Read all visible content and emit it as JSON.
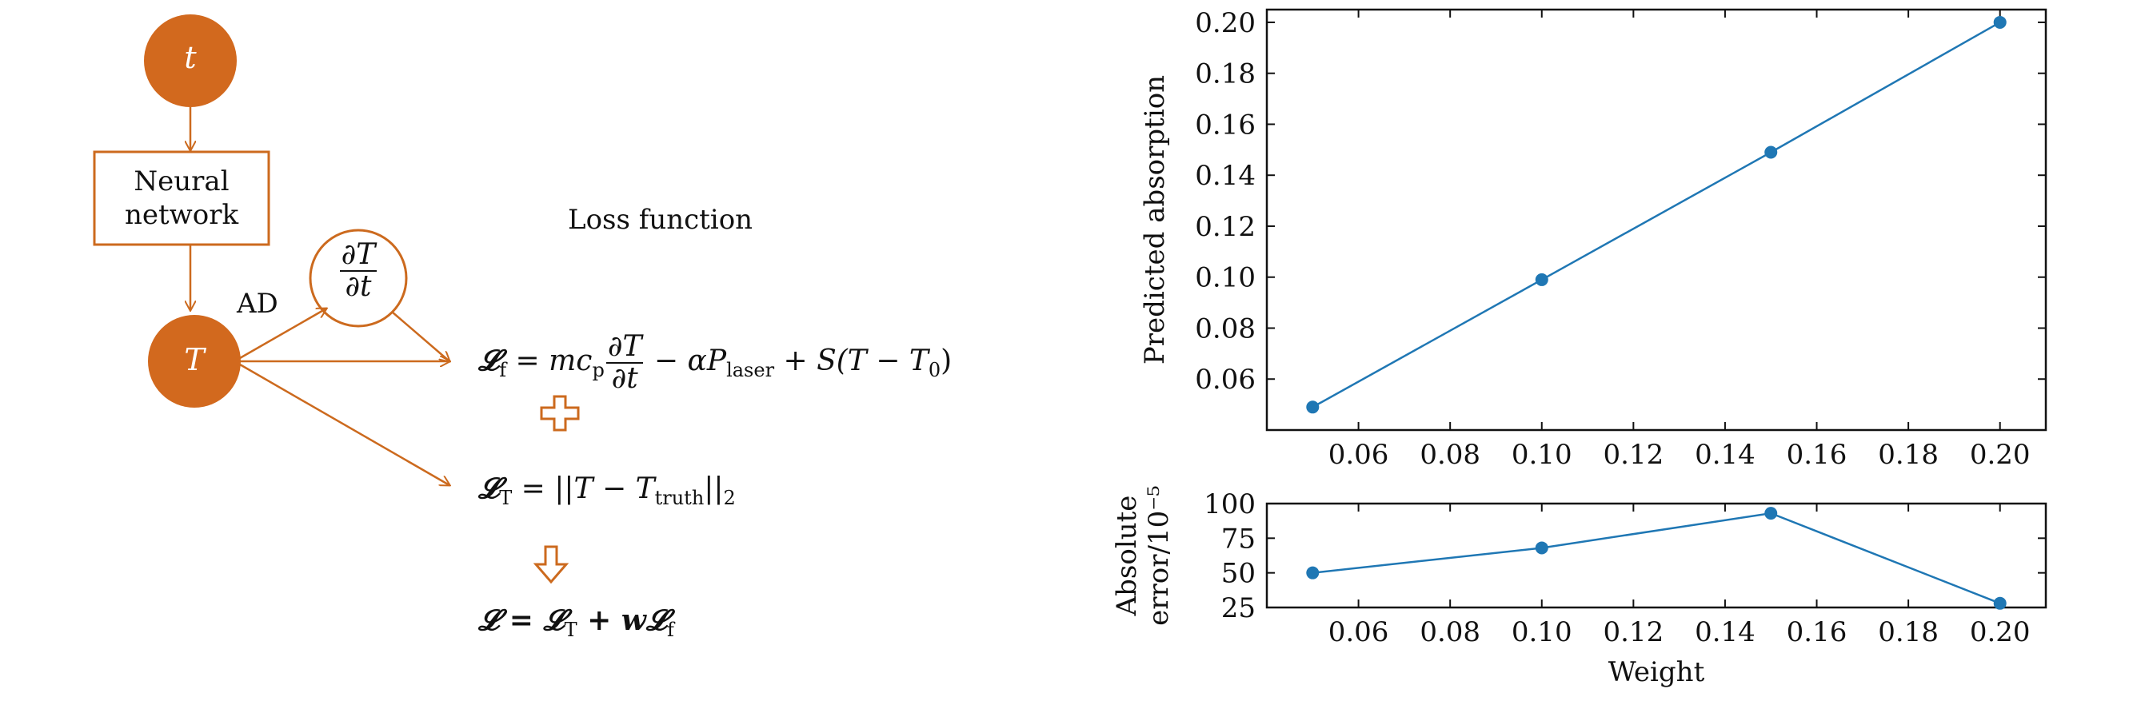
{
  "diagram": {
    "input_node": "t",
    "network_box": [
      "Neural",
      "network"
    ],
    "output_node": "T",
    "derivative": {
      "num": "∂T",
      "den": "∂t"
    },
    "ad_label": "AD",
    "loss_title": "Loss function",
    "colors": {
      "node_fill": "#d2691e",
      "stroke": "#cc6a1e",
      "text_on_node": "#ffffff"
    }
  },
  "formulas": {
    "lf": {
      "lhs": "𝓛",
      "lhs_sub": "f",
      "eq": " = ",
      "m": "mc",
      "cp_sub": "p",
      "dnum": "∂T",
      "dden": "∂t",
      "mid": " − αP",
      "laser_sub": "laser",
      "tail": " + S(T − T",
      "t0_sub": "0",
      "close": ")"
    },
    "lt": {
      "lhs": "𝓛",
      "lhs_sub": "T",
      "body": " = ||T − T",
      "truth_sub": "truth",
      "norm": "||",
      "norm_sub": "2"
    },
    "total": {
      "lhs": "𝓛",
      "eq": " = 𝓛",
      "t_sub": "T",
      "plus": " + w𝓛",
      "f_sub": "f"
    }
  },
  "chart_data": [
    {
      "type": "line",
      "x": [
        0.05,
        0.1,
        0.15,
        0.2
      ],
      "y": [
        0.049,
        0.099,
        0.149,
        0.2
      ],
      "title": "",
      "xlabel": "",
      "ylabel": "Predicted absorption",
      "xlim": [
        0.04,
        0.21
      ],
      "ylim": [
        0.04,
        0.205
      ],
      "xticks": [
        "0.06",
        "0.08",
        "0.10",
        "0.12",
        "0.14",
        "0.16",
        "0.18",
        "0.20"
      ],
      "yticks": [
        "0.06",
        "0.08",
        "0.10",
        "0.12",
        "0.14",
        "0.16",
        "0.18",
        "0.20"
      ],
      "grid": false,
      "color": "#1f77b4"
    },
    {
      "type": "line",
      "x": [
        0.05,
        0.1,
        0.15,
        0.2
      ],
      "y": [
        50,
        68,
        93,
        28
      ],
      "title": "",
      "xlabel": "Weight",
      "ylabel_lines": [
        "Absolute",
        "error/10⁻⁵"
      ],
      "xlim": [
        0.04,
        0.21
      ],
      "ylim": [
        25,
        100
      ],
      "xticks": [
        "0.06",
        "0.08",
        "0.10",
        "0.12",
        "0.14",
        "0.16",
        "0.18",
        "0.20"
      ],
      "yticks": [
        "25",
        "50",
        "75",
        "100"
      ],
      "grid": false,
      "color": "#1f77b4"
    }
  ]
}
